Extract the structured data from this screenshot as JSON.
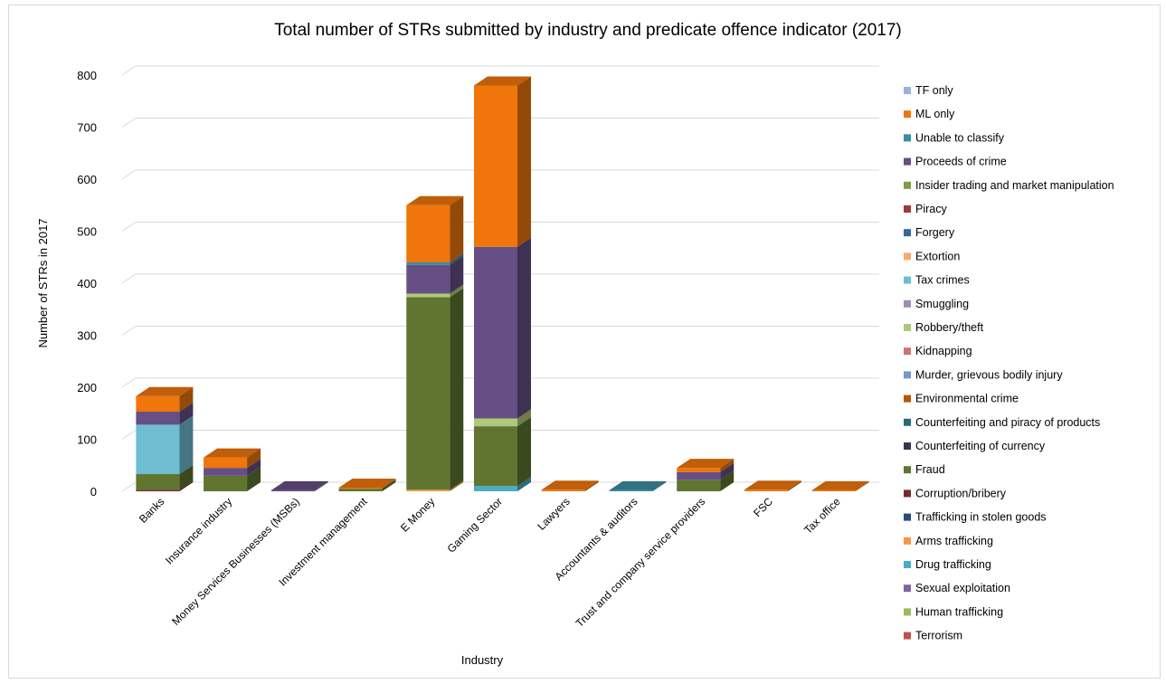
{
  "chart_data": {
    "type": "bar",
    "stacked": true,
    "three_d": true,
    "title": "Total number of STRs submitted by industry and predicate offence indicator (2017)",
    "xlabel": "Industry",
    "ylabel": "Number of STRs in 2017",
    "ylim": [
      0,
      800
    ],
    "yticks": [
      0,
      100,
      200,
      300,
      400,
      500,
      600,
      700,
      800
    ],
    "ytick_labels": [
      "0",
      "100",
      "200",
      "300",
      "400",
      "500",
      "600",
      "700",
      "800"
    ],
    "grid": true,
    "legend_position": "right",
    "categories": [
      "Banks",
      "Insurance industry",
      "Money Services Businesses (MSBs)",
      "Investment management",
      "E Money",
      "Gaming Sector",
      "Lawyers",
      "Accountants & auditors",
      "Trust and company service providers",
      "FSC",
      "Tax office"
    ],
    "series": [
      {
        "name": "Terrorism",
        "color": "#c0504d",
        "values": [
          0,
          0,
          0,
          0,
          0,
          0,
          0,
          0,
          0,
          0,
          0
        ]
      },
      {
        "name": "Human trafficking",
        "color": "#9bbb59",
        "values": [
          0,
          0,
          0,
          0,
          0,
          0,
          0,
          0,
          0,
          0,
          0
        ]
      },
      {
        "name": "Sexual exploitation",
        "color": "#8064a2",
        "values": [
          0,
          0,
          0,
          0,
          0,
          0,
          0,
          0,
          0,
          0,
          0
        ]
      },
      {
        "name": "Drug trafficking",
        "color": "#4bacc6",
        "values": [
          0,
          0,
          0,
          0,
          0,
          10,
          0,
          0,
          0,
          0,
          0
        ]
      },
      {
        "name": "Arms trafficking",
        "color": "#f79646",
        "values": [
          0,
          0,
          0,
          0,
          3,
          0,
          0,
          0,
          0,
          0,
          0
        ]
      },
      {
        "name": "Trafficking in stolen goods",
        "color": "#2c4d75",
        "values": [
          0,
          0,
          0,
          0,
          0,
          0,
          0,
          0,
          0,
          0,
          0
        ]
      },
      {
        "name": "Corruption/bribery",
        "color": "#772c2a",
        "values": [
          3,
          0,
          0,
          0,
          0,
          0,
          0,
          0,
          0,
          0,
          0
        ]
      },
      {
        "name": "Fraud",
        "color": "#5f7530",
        "values": [
          30,
          30,
          0,
          5,
          370,
          115,
          0,
          0,
          22,
          0,
          0
        ]
      },
      {
        "name": "Counterfeiting of currency",
        "color": "#3f3151",
        "values": [
          0,
          0,
          0,
          0,
          0,
          0,
          0,
          0,
          0,
          0,
          0
        ]
      },
      {
        "name": "Counterfeiting and piracy of products",
        "color": "#276a7c",
        "values": [
          0,
          0,
          0,
          0,
          0,
          0,
          0,
          0,
          0,
          0,
          0
        ]
      },
      {
        "name": "Environmental crime",
        "color": "#b65708",
        "values": [
          0,
          0,
          0,
          0,
          0,
          0,
          0,
          0,
          0,
          0,
          0
        ]
      },
      {
        "name": "Murder, grievous bodily injury",
        "color": "#729aca",
        "values": [
          0,
          0,
          0,
          0,
          0,
          0,
          0,
          0,
          0,
          0,
          0
        ]
      },
      {
        "name": "Kidnapping",
        "color": "#cd7371",
        "values": [
          0,
          0,
          0,
          0,
          0,
          0,
          0,
          0,
          0,
          0,
          0
        ]
      },
      {
        "name": "Robbery/theft",
        "color": "#afc97a",
        "values": [
          0,
          0,
          0,
          0,
          7,
          15,
          0,
          0,
          0,
          0,
          0
        ]
      },
      {
        "name": "Smuggling",
        "color": "#a18cb7",
        "values": [
          0,
          0,
          0,
          0,
          0,
          0,
          0,
          0,
          0,
          0,
          0
        ]
      },
      {
        "name": "Tax crimes",
        "color": "#6fbdd1",
        "values": [
          95,
          0,
          0,
          0,
          0,
          0,
          0,
          0,
          0,
          0,
          0
        ]
      },
      {
        "name": "Extortion",
        "color": "#f9ab6b",
        "values": [
          0,
          0,
          0,
          0,
          0,
          0,
          0,
          0,
          0,
          0,
          0
        ]
      },
      {
        "name": "Forgery",
        "color": "#3a6599",
        "values": [
          0,
          0,
          0,
          0,
          0,
          0,
          0,
          0,
          0,
          0,
          0
        ]
      },
      {
        "name": "Piracy",
        "color": "#9c3a38",
        "values": [
          0,
          0,
          0,
          0,
          0,
          0,
          0,
          0,
          0,
          0,
          0
        ]
      },
      {
        "name": "Insider trading and market manipulation",
        "color": "#7f9a48",
        "values": [
          0,
          0,
          0,
          0,
          0,
          0,
          0,
          0,
          0,
          0,
          0
        ]
      },
      {
        "name": "Proceeds of crime",
        "color": "#664f85",
        "values": [
          25,
          15,
          2,
          0,
          55,
          330,
          0,
          0,
          15,
          0,
          0
        ]
      },
      {
        "name": "Unable to classify",
        "color": "#3c8da3",
        "values": [
          0,
          0,
          0,
          0,
          5,
          0,
          0,
          2,
          0,
          0,
          0
        ]
      },
      {
        "name": "ML only",
        "color": "#f0750b",
        "values": [
          30,
          20,
          0,
          2,
          110,
          310,
          3,
          0,
          8,
          3,
          2
        ]
      },
      {
        "name": "TF only",
        "color": "#95b3d7",
        "values": [
          0,
          0,
          0,
          0,
          0,
          0,
          0,
          0,
          0,
          0,
          0
        ]
      }
    ]
  }
}
